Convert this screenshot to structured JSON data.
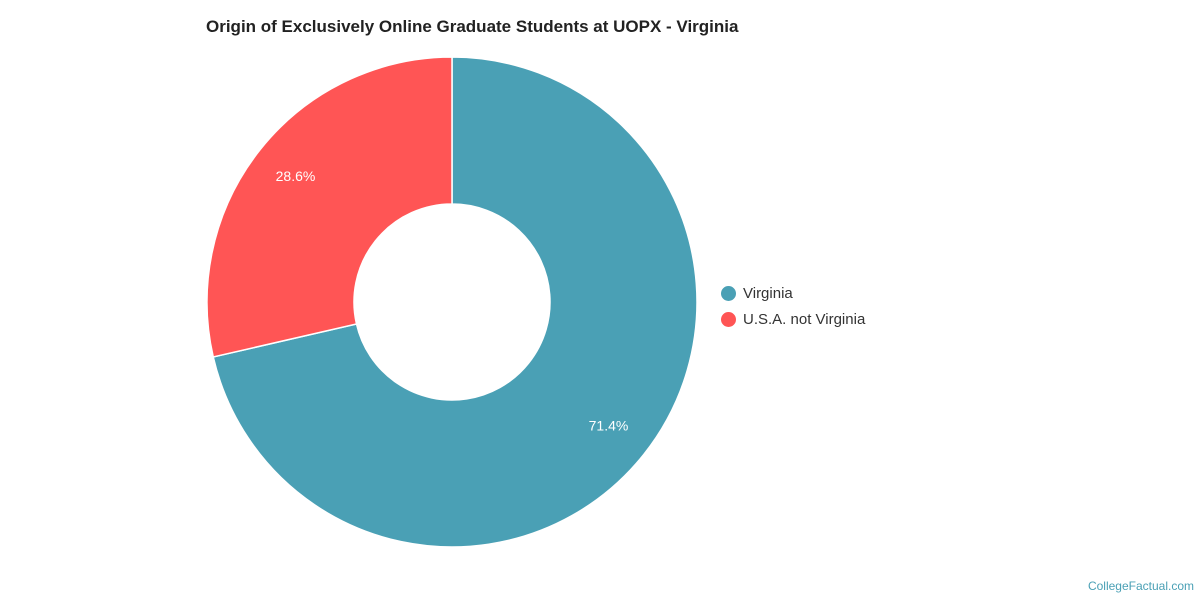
{
  "chart_data": {
    "type": "pie",
    "title": "Origin of Exclusively Online Graduate Students at UOPX - Virginia",
    "donut": true,
    "legend_position": "right",
    "slices": [
      {
        "label": "Virginia",
        "value": 71.4,
        "display": "71.4%",
        "color": "#4aa0b5"
      },
      {
        "label": "U.S.A. not Virginia",
        "value": 28.6,
        "display": "28.6%",
        "color": "#ff5555"
      }
    ]
  },
  "watermark": "CollegeFactual.com"
}
